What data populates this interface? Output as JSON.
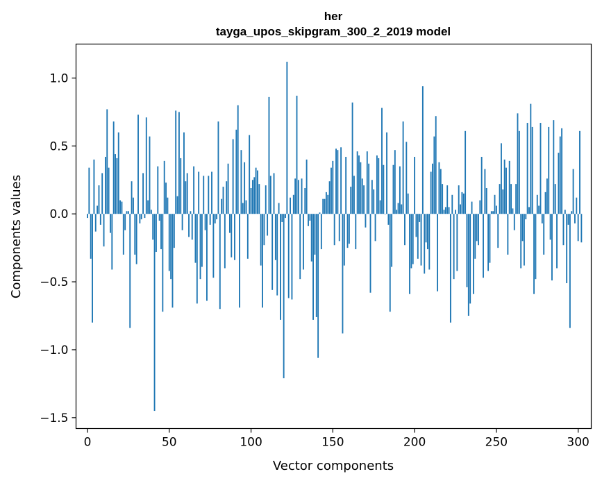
{
  "chart_data": {
    "type": "bar",
    "title": "her",
    "subtitle": "tayga_upos_skipgram_300_2_2019 model",
    "xlabel": "Vector components",
    "ylabel": "Components values",
    "xlim": [
      -7,
      308
    ],
    "ylim": [
      -1.58,
      1.25
    ],
    "xticks": [
      0,
      50,
      100,
      150,
      200,
      250,
      300
    ],
    "xtick_labels": [
      "0",
      "50",
      "100",
      "150",
      "200",
      "250",
      "300"
    ],
    "yticks": [
      -1.5,
      -1.0,
      -0.5,
      0.0,
      0.5,
      1.0
    ],
    "ytick_labels": [
      "−1.5",
      "−1.0",
      "−0.5",
      "0.0",
      "0.5",
      "1.0"
    ],
    "grid": false,
    "legend": "none",
    "color": "#1f77b4",
    "x_start": 0,
    "values": [
      -0.03,
      0.34,
      -0.33,
      -0.8,
      0.4,
      -0.13,
      0.06,
      0.21,
      -0.08,
      0.3,
      -0.24,
      0.42,
      0.77,
      0.34,
      -0.14,
      -0.41,
      0.68,
      0.44,
      0.41,
      0.6,
      0.1,
      0.09,
      -0.3,
      -0.12,
      0.02,
      0.02,
      -0.84,
      0.24,
      0.12,
      -0.3,
      -0.37,
      0.73,
      -0.07,
      -0.04,
      0.3,
      -0.03,
      0.71,
      0.1,
      0.57,
      0.03,
      -0.19,
      -1.45,
      -0.28,
      0.35,
      -0.05,
      -0.26,
      -0.72,
      0.39,
      0.23,
      0.12,
      -0.42,
      -0.48,
      -0.69,
      -0.25,
      0.76,
      0.13,
      0.75,
      0.41,
      -0.12,
      0.6,
      0.24,
      0.3,
      -0.17,
      0.02,
      -0.19,
      0.35,
      -0.36,
      -0.66,
      0.31,
      -0.48,
      -0.39,
      0.28,
      -0.12,
      -0.64,
      0.28,
      -0.08,
      0.31,
      -0.47,
      -0.07,
      -0.04,
      0.68,
      -0.7,
      0.11,
      0.2,
      -0.4,
      0.24,
      0.37,
      -0.14,
      -0.32,
      0.55,
      -0.34,
      0.62,
      0.8,
      -0.69,
      0.47,
      0.08,
      0.38,
      0.1,
      -0.33,
      0.58,
      0.19,
      0.25,
      0.27,
      0.34,
      0.32,
      0.22,
      -0.38,
      -0.69,
      -0.23,
      0.21,
      -0.16,
      0.86,
      0.28,
      -0.56,
      0.3,
      -0.34,
      -0.6,
      0.08,
      -0.78,
      -0.06,
      -1.21,
      -0.03,
      1.12,
      -0.62,
      0.12,
      -0.63,
      0.14,
      0.26,
      0.87,
      0.25,
      -0.48,
      0.26,
      -0.41,
      0.19,
      0.4,
      -0.09,
      -0.05,
      -0.35,
      -0.78,
      -0.3,
      -0.76,
      -1.06,
      0.01,
      -0.26,
      0.11,
      0.11,
      0.16,
      0.14,
      0.24,
      0.34,
      0.39,
      -0.23,
      0.48,
      0.47,
      -0.2,
      0.49,
      -0.88,
      -0.38,
      0.42,
      -0.25,
      -0.22,
      0.2,
      0.82,
      0.28,
      -0.26,
      0.46,
      0.43,
      0.38,
      0.26,
      0.21,
      -0.1,
      0.46,
      0.37,
      -0.58,
      0.25,
      0.18,
      -0.2,
      0.43,
      0.41,
      0.1,
      0.78,
      0.36,
      0.0,
      0.6,
      -0.08,
      -0.72,
      -0.39,
      0.36,
      0.47,
      0.03,
      0.08,
      0.35,
      0.07,
      0.68,
      -0.23,
      0.53,
      0.15,
      -0.59,
      -0.4,
      -0.37,
      0.42,
      -0.17,
      -0.33,
      -0.06,
      -0.38,
      0.94,
      -0.44,
      -0.21,
      -0.26,
      -0.41,
      0.31,
      0.37,
      0.57,
      0.72,
      -0.57,
      0.38,
      0.33,
      0.22,
      0.03,
      0.05,
      0.21,
      0.05,
      -0.8,
      0.14,
      -0.48,
      0.03,
      -0.42,
      0.21,
      0.07,
      0.16,
      0.15,
      0.61,
      -0.54,
      -0.75,
      -0.66,
      0.09,
      -0.59,
      -0.33,
      -0.2,
      -0.23,
      0.1,
      0.42,
      -0.47,
      0.33,
      0.19,
      -0.42,
      -0.36,
      0.02,
      0.02,
      0.14,
      0.06,
      -0.25,
      0.22,
      0.52,
      0.18,
      0.4,
      0.34,
      -0.3,
      0.39,
      0.22,
      0.04,
      -0.12,
      0.22,
      0.74,
      0.61,
      -0.4,
      -0.2,
      -0.38,
      -0.04,
      0.67,
      0.05,
      0.81,
      0.64,
      -0.59,
      -0.48,
      0.14,
      0.06,
      0.67,
      -0.07,
      -0.3,
      0.16,
      0.26,
      0.64,
      -0.19,
      -0.49,
      0.69,
      0.22,
      -0.4,
      0.45,
      0.57,
      0.63,
      -0.23,
      0.03,
      -0.51,
      -0.08,
      -0.84,
      0.02,
      0.33,
      -0.07,
      0.12,
      -0.2,
      0.61,
      -0.21
    ]
  }
}
